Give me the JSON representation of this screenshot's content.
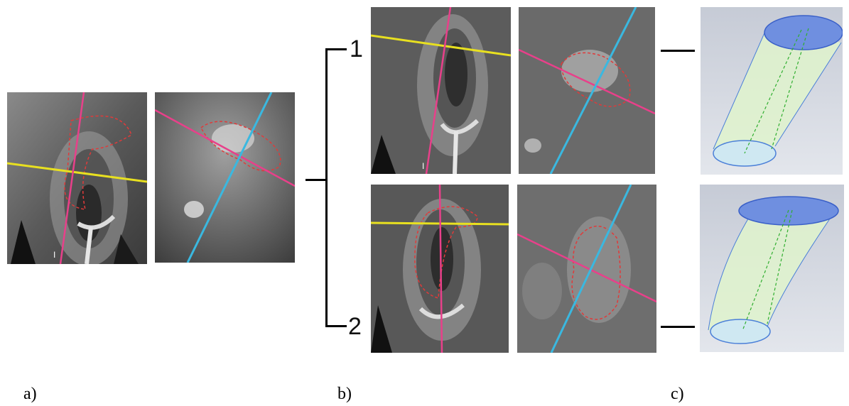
{
  "captions": {
    "a": "a)",
    "b": "b)",
    "c": "c)"
  },
  "case_labels": {
    "one": "1",
    "two": "2"
  },
  "marker": "I",
  "colors": {
    "axial_line": "#e8e020",
    "sagittal_line": "#e8408a",
    "cross_line": "#3ab8e0",
    "contour": "#e03a3a",
    "model_fill": "#dff3cc",
    "model_ellipse": "#4a7fd8",
    "model_axis": "#2fae2f"
  }
}
